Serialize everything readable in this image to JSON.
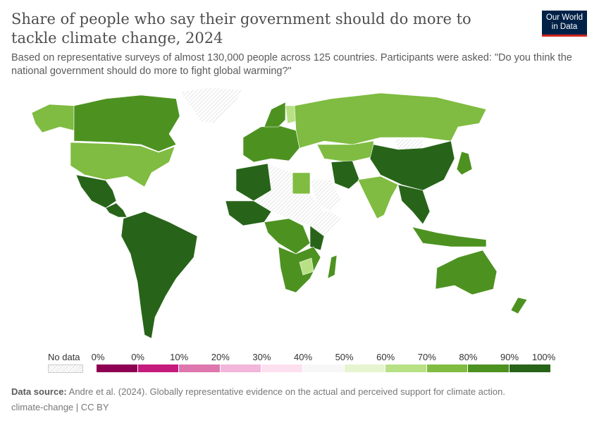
{
  "header": {
    "title": "Share of people who say their government should do more to tackle climate change, 2024",
    "subtitle": "Based on representative surveys of almost 130,000 people across 125 countries. Participants were asked: \"Do you think the national government should do more to fight global warming?\"",
    "logo_text": "Our World in Data"
  },
  "legend": {
    "no_data_label": "No data",
    "tick_labels": [
      "0%",
      "0%",
      "10%",
      "20%",
      "30%",
      "40%",
      "50%",
      "60%",
      "70%",
      "80%",
      "90%",
      "100%"
    ],
    "bins": [
      {
        "range": "0-0%",
        "color": "#8e0152"
      },
      {
        "range": "0-10%",
        "color": "#c51b7d"
      },
      {
        "range": "10-20%",
        "color": "#de77ae"
      },
      {
        "range": "20-30%",
        "color": "#f1b6da"
      },
      {
        "range": "30-40%",
        "color": "#fde0ef"
      },
      {
        "range": "40-50%",
        "color": "#f7f7f7"
      },
      {
        "range": "50-60%",
        "color": "#e6f5d0"
      },
      {
        "range": "60-70%",
        "color": "#b8e186"
      },
      {
        "range": "70-80%",
        "color": "#7fbc41"
      },
      {
        "range": "80-90%",
        "color": "#4d9221"
      },
      {
        "range": "90-100%",
        "color": "#276419"
      }
    ]
  },
  "map_values": {
    "Alaska": "70-80%",
    "Canada": "80-90%",
    "United States": "70-80%",
    "Greenland": "no data",
    "Mexico": "90-100%",
    "Central America": "90-100%",
    "South America": "90-100%",
    "Western Europe": "80-90%",
    "Scandinavia": "80-90%",
    "Finland": "60-70%",
    "Russia": "70-80%",
    "Algeria": "90-100%",
    "Sahel": "no data",
    "Egypt": "70-80%",
    "West Africa": "90-100%",
    "Central Africa": "80-90%",
    "East Africa": "90-100%",
    "Horn of Africa": "no data",
    "Southern Africa": "80-90%",
    "Zimbabwe": "60-70%",
    "Madagascar": "80-90%",
    "Saudi Arabia": "no data",
    "Iran": "90-100%",
    "Kazakhstan": "70-80%",
    "India": "70-80%",
    "China": "90-100%",
    "Southeast Asia": "90-100%",
    "Indonesia": "80-90%",
    "Japan": "80-90%",
    "Australia": "80-90%",
    "New Zealand": "80-90%",
    "Mongolia": "no data"
  },
  "footer": {
    "source_label": "Data source:",
    "source_text": "Andre et al. (2024). Globally representative evidence on the actual and perceived support for climate action.",
    "license": "climate-change | CC BY"
  }
}
